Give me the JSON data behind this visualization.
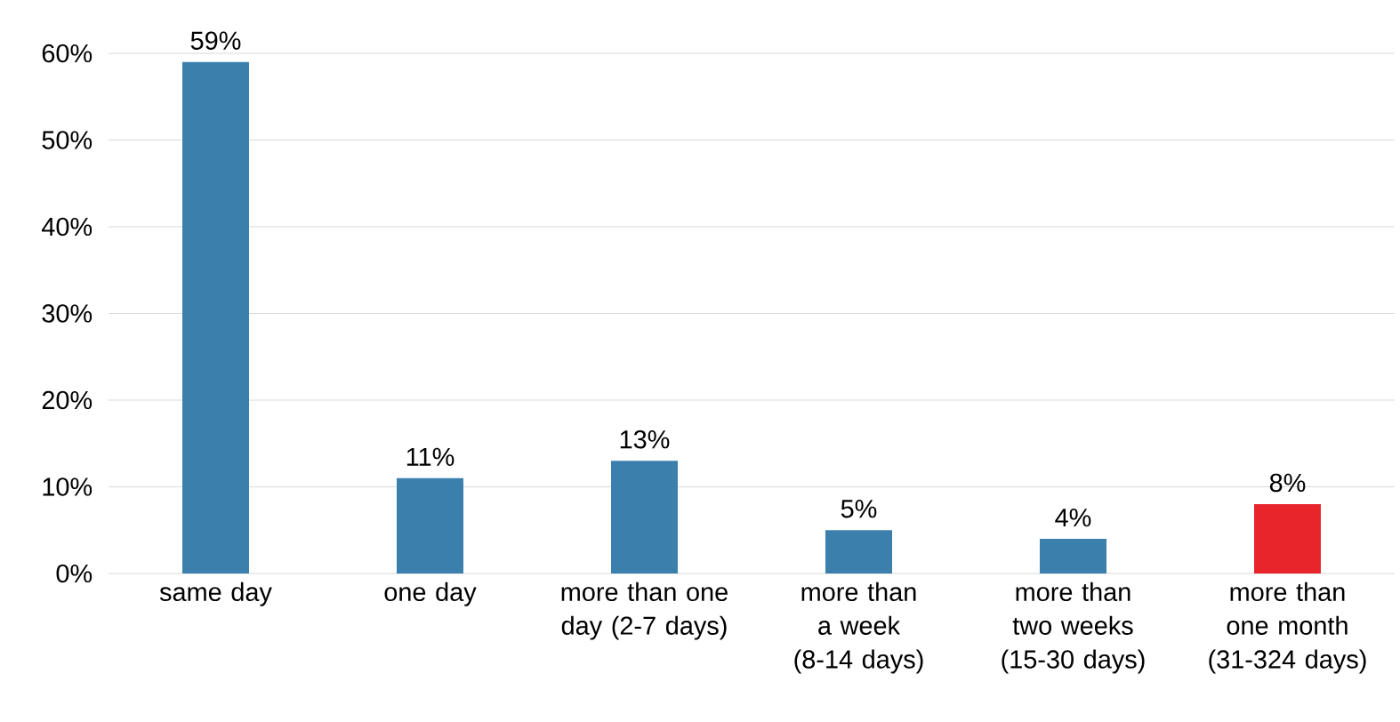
{
  "chart_data": {
    "type": "bar",
    "categories": [
      "same day",
      "one day",
      "more than one day (2-7 days)",
      "more than a week (8-14 days)",
      "more than two weeks (15-30 days)",
      "more than one month (31-324 days)"
    ],
    "values": [
      59,
      11,
      13,
      5,
      4,
      8
    ],
    "value_labels": [
      "59%",
      "11%",
      "13%",
      "5%",
      "4%",
      "8%"
    ],
    "colors": [
      "#3b7fad",
      "#3b7fad",
      "#3b7fad",
      "#3b7fad",
      "#3b7fad",
      "#e8252b"
    ],
    "ylim": [
      0,
      60
    ],
    "yticks": [
      {
        "value": 0,
        "label": "0%"
      },
      {
        "value": 10,
        "label": "10%"
      },
      {
        "value": 20,
        "label": "20%"
      },
      {
        "value": 30,
        "label": "30%"
      },
      {
        "value": 40,
        "label": "40%"
      },
      {
        "value": 50,
        "label": "50%"
      },
      {
        "value": 60,
        "label": "60%"
      }
    ],
    "grid": "y"
  }
}
